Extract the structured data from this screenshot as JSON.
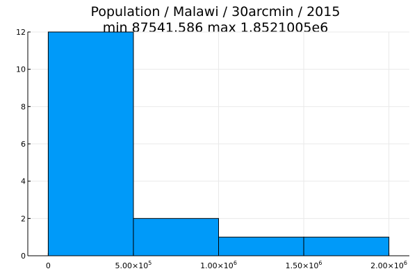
{
  "chart_data": {
    "type": "bar",
    "title_lines": [
      "Population / Malawi / 30arcmin / 2015",
      "min 87541.586  max 1.8521005e6"
    ],
    "xlabel": "",
    "ylabel": "",
    "bins": [
      {
        "start": 0,
        "end": 500000,
        "count": 12
      },
      {
        "start": 500000,
        "end": 1000000,
        "count": 2
      },
      {
        "start": 1000000,
        "end": 1500000,
        "count": 1
      },
      {
        "start": 1500000,
        "end": 2000000,
        "count": 1
      }
    ],
    "xlim": [
      -120000,
      2120000
    ],
    "ylim": [
      0,
      12
    ],
    "x_ticks": [
      {
        "value": 0,
        "mantissa": "0",
        "exp": ""
      },
      {
        "value": 500000,
        "mantissa": "5.00×10",
        "exp": "5"
      },
      {
        "value": 1000000,
        "mantissa": "1.00×10",
        "exp": "6"
      },
      {
        "value": 1500000,
        "mantissa": "1.50×10",
        "exp": "6"
      },
      {
        "value": 2000000,
        "mantissa": "2.00×10",
        "exp": "6"
      }
    ],
    "y_ticks": [
      0,
      2,
      4,
      6,
      8,
      10,
      12
    ],
    "grid": true,
    "legend": "none",
    "bar_color": "#009AF9",
    "edge_color": "#000000"
  }
}
